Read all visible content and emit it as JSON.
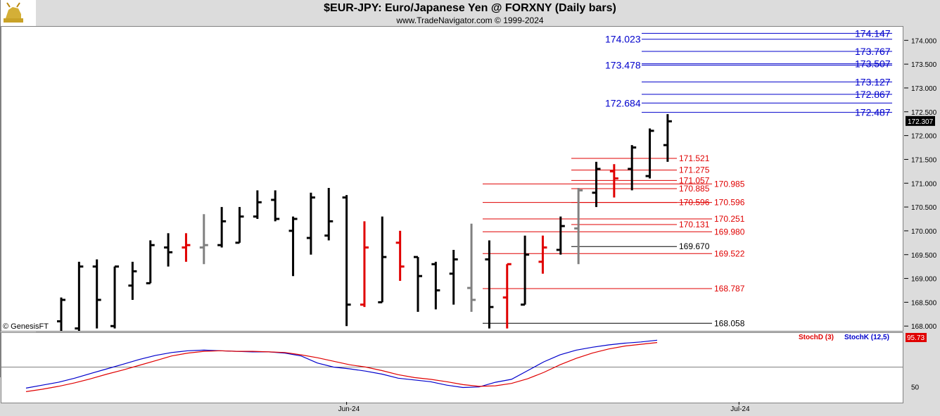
{
  "title": "$EUR-JPY:  Euro/Japanese Yen @ FORXNY  (Daily bars)",
  "subtitle": "www.TradeNavigator.com © 1999-2024",
  "watermark": "© GenesisFT",
  "colors": {
    "up": "#000000",
    "down": "#e00000",
    "neutral": "#808080",
    "blue_level": "#0000cc",
    "red_level": "#e00000",
    "stochK": "#0000cc",
    "stochD": "#e00000"
  },
  "icons": {
    "logo": "gold-bull-icon"
  },
  "chart_data": [
    {
      "type": "ohlc",
      "title": "$EUR-JPY:  Euro/Japanese Yen @ FORXNY  (Daily bars)",
      "ylim": [
        167.9,
        174.3
      ],
      "y_ticks": [
        "174.000",
        "173.500",
        "173.000",
        "172.500",
        "172.000",
        "171.500",
        "171.000",
        "170.500",
        "170.000",
        "169.500",
        "169.000",
        "168.500",
        "168.000"
      ],
      "x_ticks": [
        {
          "label": "Jun-24",
          "bar": 16
        },
        {
          "label": "Jul-24",
          "bar": 38
        }
      ],
      "last_price": "172.307",
      "bars": [
        {
          "o": 168.1,
          "h": 168.6,
          "l": 167.9,
          "c": 168.55,
          "color": "up"
        },
        {
          "o": 167.95,
          "h": 169.35,
          "l": 167.9,
          "c": 169.25,
          "color": "up"
        },
        {
          "o": 169.25,
          "h": 169.4,
          "l": 167.95,
          "c": 168.55,
          "color": "up"
        },
        {
          "o": 168.0,
          "h": 169.25,
          "l": 167.95,
          "c": 169.25,
          "color": "up"
        },
        {
          "o": 168.85,
          "h": 169.35,
          "l": 168.55,
          "c": 169.15,
          "color": "up"
        },
        {
          "o": 168.9,
          "h": 169.8,
          "l": 168.9,
          "c": 169.7,
          "color": "up"
        },
        {
          "o": 169.65,
          "h": 169.95,
          "l": 169.25,
          "c": 169.55,
          "color": "up"
        },
        {
          "o": 169.65,
          "h": 169.95,
          "l": 169.35,
          "c": 169.7,
          "color": "down"
        },
        {
          "o": 169.65,
          "h": 170.35,
          "l": 169.3,
          "c": 169.7,
          "color": "neutral"
        },
        {
          "o": 169.7,
          "h": 170.5,
          "l": 169.65,
          "c": 170.2,
          "color": "up"
        },
        {
          "o": 169.75,
          "h": 170.5,
          "l": 169.75,
          "c": 170.3,
          "color": "up"
        },
        {
          "o": 170.3,
          "h": 170.85,
          "l": 170.25,
          "c": 170.6,
          "color": "up"
        },
        {
          "o": 170.65,
          "h": 170.85,
          "l": 170.2,
          "c": 170.25,
          "color": "up"
        },
        {
          "o": 170.0,
          "h": 170.3,
          "l": 169.05,
          "c": 170.25,
          "color": "up"
        },
        {
          "o": 169.85,
          "h": 170.8,
          "l": 169.5,
          "c": 170.7,
          "color": "up"
        },
        {
          "o": 169.9,
          "h": 170.9,
          "l": 169.8,
          "c": 170.2,
          "color": "up"
        },
        {
          "o": 170.7,
          "h": 170.75,
          "l": 168.0,
          "c": 168.45,
          "color": "up"
        },
        {
          "o": 168.45,
          "h": 170.2,
          "l": 168.4,
          "c": 169.65,
          "color": "down"
        },
        {
          "o": 168.5,
          "h": 170.3,
          "l": 168.5,
          "c": 169.45,
          "color": "up"
        },
        {
          "o": 169.75,
          "h": 170.0,
          "l": 168.95,
          "c": 169.25,
          "color": "down"
        },
        {
          "o": 169.45,
          "h": 169.45,
          "l": 168.3,
          "c": 169.05,
          "color": "up"
        },
        {
          "o": 169.3,
          "h": 169.35,
          "l": 168.35,
          "c": 168.75,
          "color": "up"
        },
        {
          "o": 169.1,
          "h": 169.6,
          "l": 168.45,
          "c": 169.4,
          "color": "up"
        },
        {
          "o": 168.8,
          "h": 170.15,
          "l": 168.3,
          "c": 168.55,
          "color": "neutral"
        },
        {
          "o": 169.4,
          "h": 169.8,
          "l": 167.95,
          "c": 168.4,
          "color": "up"
        },
        {
          "o": 168.6,
          "h": 169.3,
          "l": 167.95,
          "c": 169.3,
          "color": "down"
        },
        {
          "o": 168.45,
          "h": 169.9,
          "l": 168.45,
          "c": 169.5,
          "color": "up"
        },
        {
          "o": 169.35,
          "h": 169.9,
          "l": 169.1,
          "c": 169.65,
          "color": "down"
        },
        {
          "o": 169.6,
          "h": 170.3,
          "l": 169.5,
          "c": 170.1,
          "color": "up"
        },
        {
          "o": 170.05,
          "h": 170.9,
          "l": 169.3,
          "c": 170.85,
          "color": "neutral"
        },
        {
          "o": 170.8,
          "h": 171.45,
          "l": 170.5,
          "c": 171.3,
          "color": "up"
        },
        {
          "o": 171.25,
          "h": 171.4,
          "l": 170.7,
          "c": 171.1,
          "color": "down"
        },
        {
          "o": 171.3,
          "h": 171.8,
          "l": 170.85,
          "c": 171.75,
          "color": "up"
        },
        {
          "o": 171.15,
          "h": 172.15,
          "l": 171.1,
          "c": 172.1,
          "color": "up"
        },
        {
          "o": 171.8,
          "h": 172.45,
          "l": 171.45,
          "c": 172.3,
          "color": "up"
        }
      ],
      "blue_levels": [
        {
          "price": 174.147,
          "label": "174.147",
          "label_side": "right"
        },
        {
          "price": 174.023,
          "label": "174.023",
          "label_side": "left"
        },
        {
          "price": 173.767,
          "label": "173.767",
          "label_side": "right"
        },
        {
          "price": 173.507,
          "label": "173.507",
          "label_side": "right"
        },
        {
          "price": 173.478,
          "label": "173.478",
          "label_side": "left"
        },
        {
          "price": 173.127,
          "label": "173.127",
          "label_side": "right"
        },
        {
          "price": 172.867,
          "label": "172.867",
          "label_side": "right"
        },
        {
          "price": 172.684,
          "label": "172.684",
          "label_side": "left"
        },
        {
          "price": 172.487,
          "label": "172.487",
          "label_side": "right"
        }
      ],
      "red_levels": [
        {
          "price": 171.521,
          "label": "171.521",
          "group": "A"
        },
        {
          "price": 171.275,
          "label": "171.275",
          "group": "A"
        },
        {
          "price": 171.057,
          "label": "171.057",
          "group": "A"
        },
        {
          "price": 170.985,
          "label": "170.985",
          "group": "B"
        },
        {
          "price": 170.885,
          "label": "170.885",
          "group": "A"
        },
        {
          "price": 170.596,
          "label": "170.596",
          "group": "A"
        },
        {
          "price": 170.596,
          "label": "170.596",
          "group": "B"
        },
        {
          "price": 170.251,
          "label": "170.251",
          "group": "B"
        },
        {
          "price": 170.131,
          "label": "170.131",
          "group": "A"
        },
        {
          "price": 169.98,
          "label": "169.980",
          "group": "B"
        },
        {
          "price": 169.522,
          "label": "169.522",
          "group": "B"
        },
        {
          "price": 168.787,
          "label": "168.787",
          "group": "B"
        }
      ],
      "black_levels": [
        {
          "price": 169.67,
          "label": "169.670",
          "group": "A"
        },
        {
          "price": 168.058,
          "label": "168.058",
          "group": "B"
        }
      ]
    },
    {
      "type": "line",
      "ylim": [
        0,
        100
      ],
      "y_ticks": [
        "50"
      ],
      "series": [
        {
          "name": "StochK (12,5)",
          "color": "stochK",
          "values": [
            14,
            19,
            24,
            31,
            39,
            47,
            55,
            63,
            70,
            75,
            78,
            79,
            78,
            77,
            76,
            76,
            74,
            69,
            57,
            50,
            47,
            43,
            38,
            31,
            28,
            25,
            19,
            15,
            16,
            24,
            29,
            44,
            59,
            71,
            79,
            84,
            88,
            91,
            93,
            96
          ]
        },
        {
          "name": "StochD (3)",
          "color": "stochD",
          "values": [
            8,
            12,
            17,
            23,
            30,
            38,
            45,
            53,
            61,
            69,
            74,
            77,
            78,
            77,
            77,
            76,
            75,
            71,
            66,
            60,
            54,
            50,
            44,
            37,
            32,
            29,
            25,
            20,
            17,
            18,
            22,
            30,
            41,
            54,
            65,
            74,
            81,
            86,
            89,
            92
          ]
        }
      ],
      "last_value": "95.73",
      "legend": [
        "StochD (3)",
        "StochK (12,5)"
      ]
    }
  ]
}
